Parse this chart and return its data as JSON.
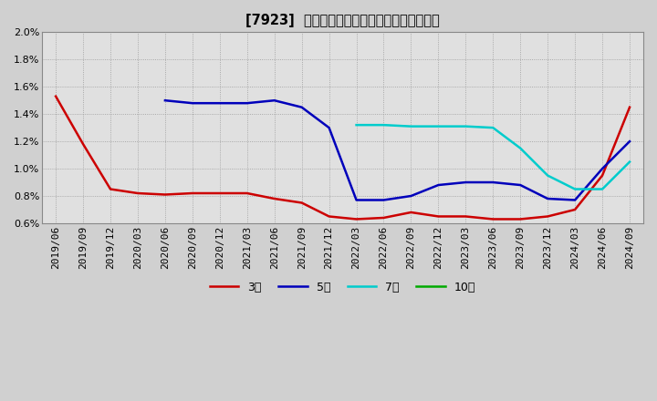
{
  "title": "[7923]  当期純利益マージンの標準偏差の推移",
  "background_color": "#d0d0d0",
  "plot_background_color": "#e0e0e0",
  "grid_color": "#999999",
  "ylim": [
    0.006,
    0.02
  ],
  "yticks": [
    0.006,
    0.008,
    0.01,
    0.012,
    0.014,
    0.016,
    0.018,
    0.02
  ],
  "legend": [
    "3年",
    "5年",
    "7年",
    "10年"
  ],
  "legend_colors": [
    "#cc0000",
    "#0000bb",
    "#00cccc",
    "#00aa00"
  ],
  "x_labels": [
    "2019/06",
    "2019/09",
    "2019/12",
    "2020/03",
    "2020/06",
    "2020/09",
    "2020/12",
    "2021/03",
    "2021/06",
    "2021/09",
    "2021/12",
    "2022/03",
    "2022/06",
    "2022/09",
    "2022/12",
    "2023/03",
    "2023/06",
    "2023/09",
    "2023/12",
    "2024/03",
    "2024/06",
    "2024/09"
  ],
  "series_3y_x": [
    0,
    1,
    2,
    3,
    4,
    5,
    6,
    7,
    8,
    9,
    10,
    11,
    12,
    13,
    14,
    15,
    16,
    17,
    18,
    19,
    20,
    21
  ],
  "series_3y_y": [
    0.0153,
    0.0118,
    0.0085,
    0.0082,
    0.0081,
    0.0082,
    0.0082,
    0.0082,
    0.0078,
    0.0075,
    0.0065,
    0.0063,
    0.0064,
    0.0068,
    0.0065,
    0.0065,
    0.0063,
    0.0063,
    0.0065,
    0.007,
    0.0095,
    0.0145
  ],
  "series_5y_x": [
    4,
    5,
    6,
    7,
    8,
    9,
    10,
    11,
    12,
    13,
    14,
    15,
    16,
    17,
    18,
    19,
    20,
    21
  ],
  "series_5y_y": [
    0.015,
    0.0148,
    0.0148,
    0.0148,
    0.015,
    0.0145,
    0.013,
    0.0077,
    0.0077,
    0.008,
    0.0088,
    0.009,
    0.009,
    0.0088,
    0.0078,
    0.0077,
    0.01,
    0.012
  ],
  "series_7y_x": [
    11,
    12,
    13,
    14,
    15,
    16,
    17,
    18,
    19,
    20,
    21
  ],
  "series_7y_y": [
    0.0132,
    0.0132,
    0.0131,
    0.0131,
    0.0131,
    0.013,
    0.0115,
    0.0095,
    0.0085,
    0.0085,
    0.0105
  ],
  "series_10y_x": [],
  "series_10y_y": []
}
